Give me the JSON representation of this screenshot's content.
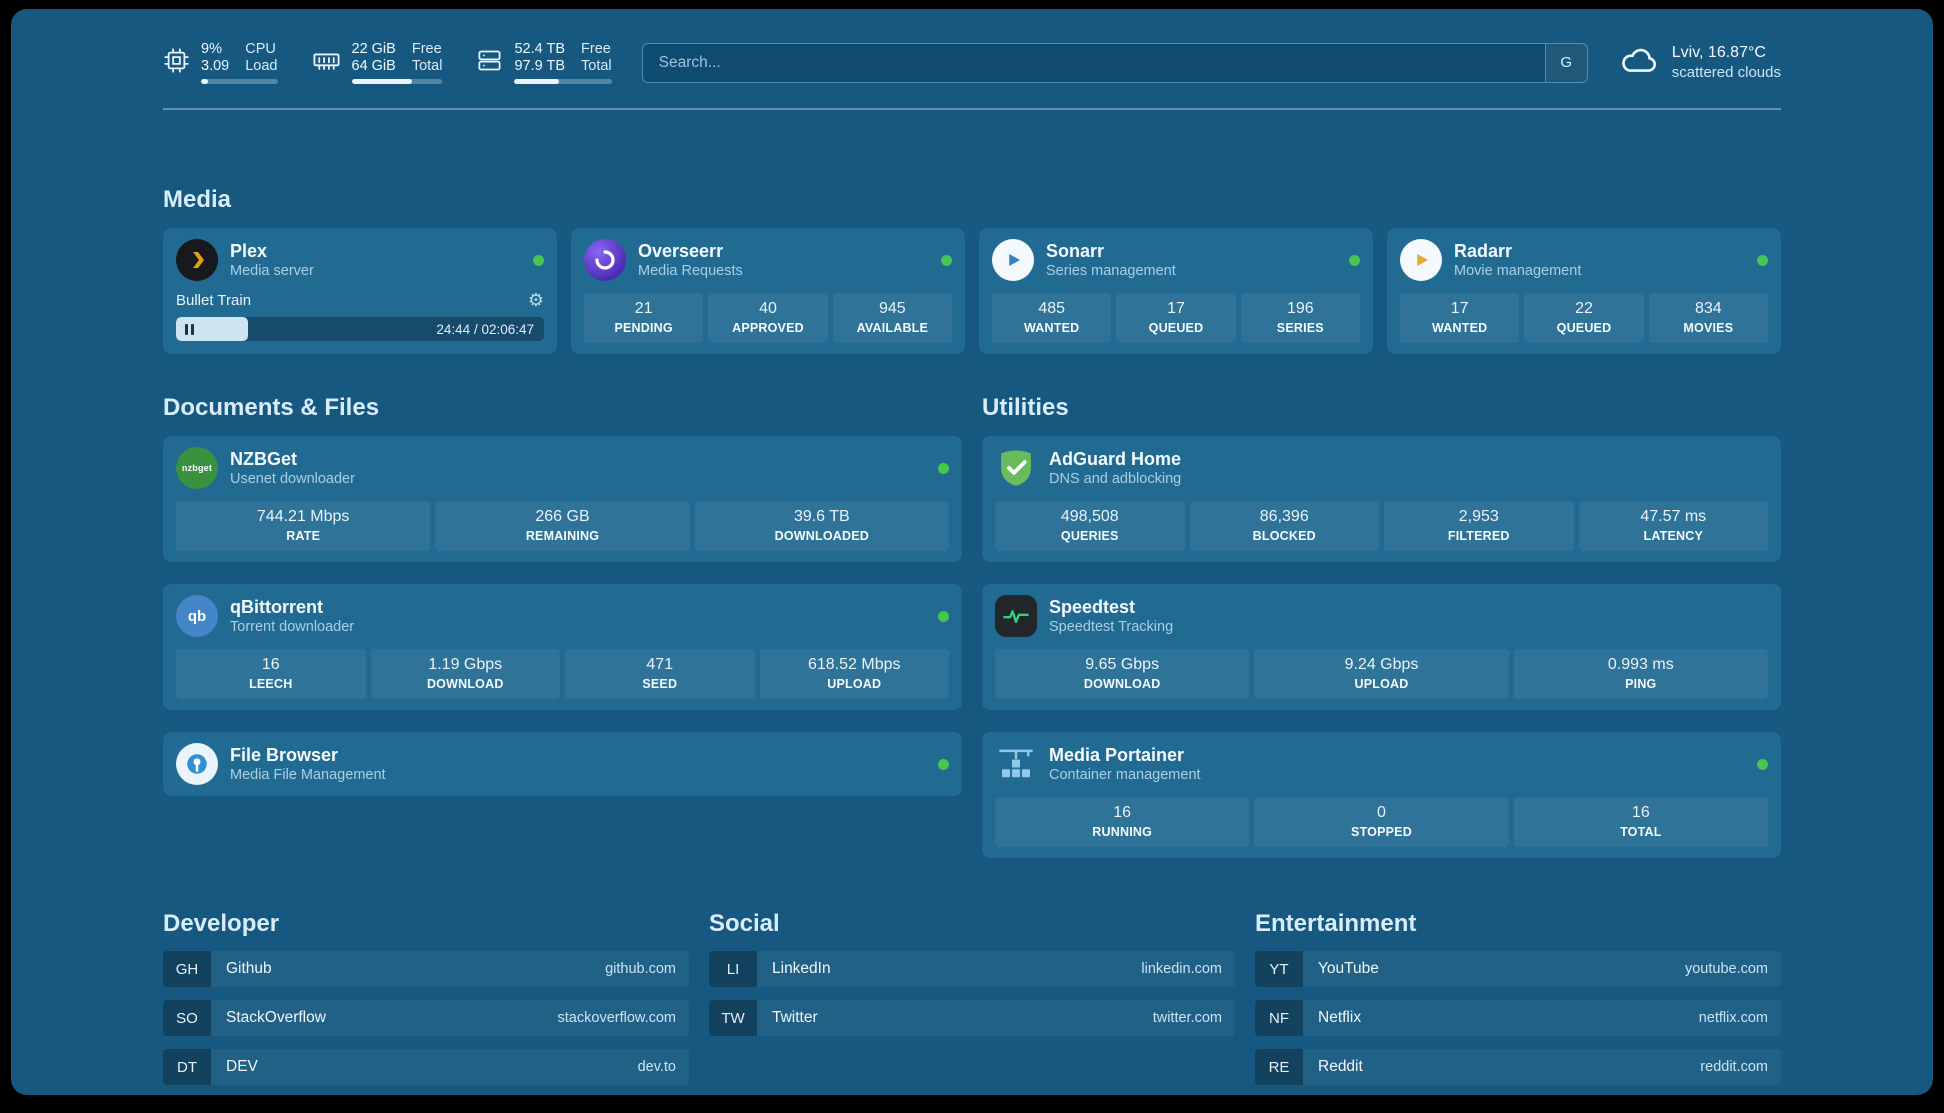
{
  "colors": {
    "page_background": "#16587f",
    "card_background": "#216a92",
    "status_online": "#44c74e",
    "plex_amber": "#e5a00d",
    "overseerr_purple": "#5f3dd0",
    "adguard_green": "#68bc5b",
    "speedtest_green": "#35d07f"
  },
  "header": {
    "resources": [
      {
        "icon": "cpu-icon",
        "value_top": "9%",
        "label_top": "CPU",
        "value_bottom": "3.09",
        "label_bottom": "Load",
        "progress": 9
      },
      {
        "icon": "ram-icon",
        "value_top": "22 GiB",
        "label_top": "Free",
        "value_bottom": "64 GiB",
        "label_bottom": "Total",
        "progress": 66
      },
      {
        "icon": "disk-icon",
        "value_top": "52.4 TB",
        "label_top": "Free",
        "value_bottom": "97.9 TB",
        "label_bottom": "Total",
        "progress": 46
      }
    ],
    "search": {
      "placeholder": "Search...",
      "engine_label": "G"
    },
    "weather": {
      "icon": "cloud-icon",
      "location": "Lviv, 16.87°C",
      "condition": "scattered clouds"
    }
  },
  "titles": {
    "media": "Media",
    "documents": "Documents & Files",
    "utilities": "Utilities"
  },
  "apps": {
    "plex": {
      "icon": "plex-icon",
      "name": "Plex",
      "subtitle": "Media server",
      "online": true,
      "now_playing": "Bullet Train",
      "time": "24:44 / 02:06:47",
      "progress_pct": 19.5
    },
    "overseerr": {
      "icon": "overseerr-icon",
      "name": "Overseerr",
      "subtitle": "Media Requests",
      "online": true,
      "stats": [
        {
          "value": "21",
          "label": "PENDING"
        },
        {
          "value": "40",
          "label": "APPROVED"
        },
        {
          "value": "945",
          "label": "AVAILABLE"
        }
      ]
    },
    "sonarr": {
      "icon": "sonarr-icon",
      "name": "Sonarr",
      "subtitle": "Series management",
      "online": true,
      "stats": [
        {
          "value": "485",
          "label": "WANTED"
        },
        {
          "value": "17",
          "label": "QUEUED"
        },
        {
          "value": "196",
          "label": "SERIES"
        }
      ]
    },
    "radarr": {
      "icon": "radarr-icon",
      "name": "Radarr",
      "subtitle": "Movie management",
      "online": true,
      "stats": [
        {
          "value": "17",
          "label": "WANTED"
        },
        {
          "value": "22",
          "label": "QUEUED"
        },
        {
          "value": "834",
          "label": "MOVIES"
        }
      ]
    },
    "nzbget": {
      "icon": "nzbget-icon",
      "abbr": "nzbget",
      "name": "NZBGet",
      "subtitle": "Usenet downloader",
      "online": true,
      "stats": [
        {
          "value": "744.21 Mbps",
          "label": "RATE"
        },
        {
          "value": "266 GB",
          "label": "REMAINING"
        },
        {
          "value": "39.6 TB",
          "label": "DOWNLOADED"
        }
      ]
    },
    "qbittorrent": {
      "icon": "qbittorrent-icon",
      "abbr": "qb",
      "name": "qBittorrent",
      "subtitle": "Torrent downloader",
      "online": true,
      "stats": [
        {
          "value": "16",
          "label": "LEECH"
        },
        {
          "value": "1.19 Gbps",
          "label": "DOWNLOAD"
        },
        {
          "value": "471",
          "label": "SEED"
        },
        {
          "value": "618.52 Mbps",
          "label": "UPLOAD"
        }
      ]
    },
    "filebrowser": {
      "icon": "filebrowser-icon",
      "name": "File Browser",
      "subtitle": "Media File Management",
      "online": true
    },
    "adguard": {
      "icon": "adguard-icon",
      "name": "AdGuard Home",
      "subtitle": "DNS and adblocking",
      "stats": [
        {
          "value": "498,508",
          "label": "QUERIES"
        },
        {
          "value": "86,396",
          "label": "BLOCKED"
        },
        {
          "value": "2,953",
          "label": "FILTERED"
        },
        {
          "value": "47.57 ms",
          "label": "LATENCY"
        }
      ]
    },
    "speedtest": {
      "icon": "speedtest-icon",
      "name": "Speedtest",
      "subtitle": "Speedtest Tracking",
      "stats": [
        {
          "value": "9.65 Gbps",
          "label": "DOWNLOAD"
        },
        {
          "value": "9.24 Gbps",
          "label": "UPLOAD"
        },
        {
          "value": "0.993 ms",
          "label": "PING"
        }
      ]
    },
    "portainer": {
      "icon": "portainer-icon",
      "name": "Media Portainer",
      "subtitle": "Container management",
      "online": true,
      "stats": [
        {
          "value": "16",
          "label": "RUNNING"
        },
        {
          "value": "0",
          "label": "STOPPED"
        },
        {
          "value": "16",
          "label": "TOTAL"
        }
      ]
    }
  },
  "bookmarks": {
    "developer": {
      "title": "Developer",
      "items": [
        {
          "abbr": "GH",
          "name": "Github",
          "url": "github.com"
        },
        {
          "abbr": "SO",
          "name": "StackOverflow",
          "url": "stackoverflow.com"
        },
        {
          "abbr": "DT",
          "name": "DEV",
          "url": "dev.to"
        }
      ]
    },
    "social": {
      "title": "Social",
      "items": [
        {
          "abbr": "LI",
          "name": "LinkedIn",
          "url": "linkedin.com"
        },
        {
          "abbr": "TW",
          "name": "Twitter",
          "url": "twitter.com"
        }
      ]
    },
    "entertainment": {
      "title": "Entertainment",
      "items": [
        {
          "abbr": "YT",
          "name": "YouTube",
          "url": "youtube.com"
        },
        {
          "abbr": "NF",
          "name": "Netflix",
          "url": "netflix.com"
        },
        {
          "abbr": "RE",
          "name": "Reddit",
          "url": "reddit.com"
        }
      ]
    }
  }
}
